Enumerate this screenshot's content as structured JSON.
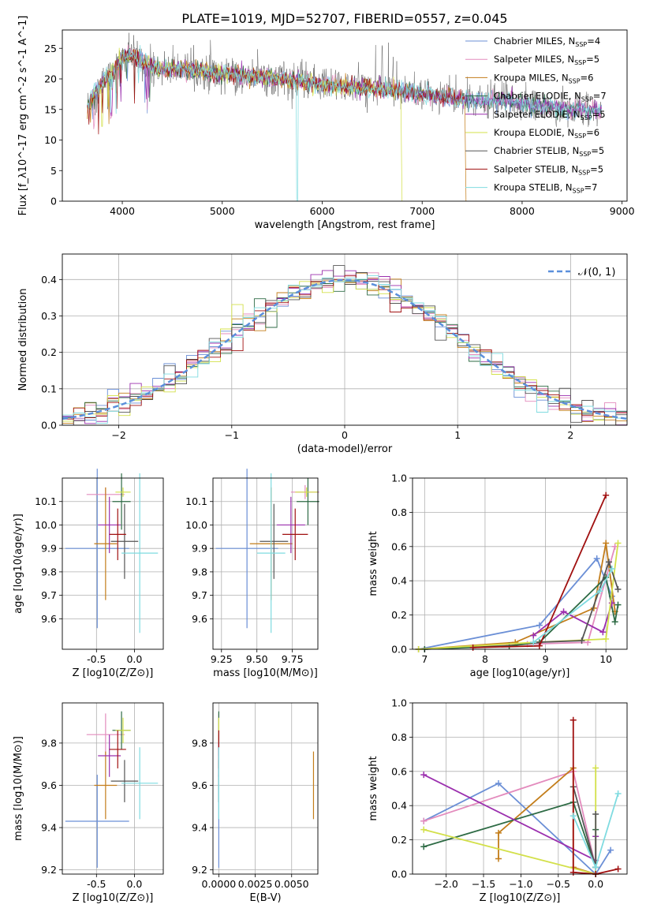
{
  "figure": {
    "title": "PLATE=1019, MJD=52707, FIBERID=0557, z=0.045",
    "colors": [
      "#6b8fd6",
      "#e38bbd",
      "#c37d1a",
      "#2e6b45",
      "#9b2fae",
      "#d3e04a",
      "#555555",
      "#a01010",
      "#7fdbe0"
    ]
  },
  "chart_data": [
    {
      "id": "spectrum",
      "type": "line",
      "xlabel": "wavelength [Angstrom, rest frame]",
      "ylabel": "Flux [f_λ10^-17 erg cm^-2 s^-1 A^-1]",
      "xlim": [
        3400,
        9050
      ],
      "ylim": [
        0,
        28
      ],
      "xticks": [
        4000,
        5000,
        6000,
        7000,
        8000,
        9000
      ],
      "yticks": [
        0,
        5,
        10,
        15,
        20,
        25
      ],
      "grid": false,
      "legend": "top-right",
      "data_x": [
        3650,
        3700,
        3800,
        3900,
        4000,
        4100,
        4200,
        4300,
        4400,
        4500,
        4600,
        4800,
        5000,
        5200,
        5400,
        5600,
        5800,
        6000,
        6200,
        6400,
        6600,
        6800,
        7000,
        7200,
        7400,
        7600,
        7800,
        8000,
        8200,
        8400,
        8600,
        8800
      ],
      "data_y": [
        15.5,
        17,
        19.5,
        21,
        23.5,
        24,
        23,
        22,
        21.5,
        21.5,
        21.5,
        21.2,
        20.8,
        20.5,
        20.3,
        20,
        19.5,
        19.2,
        18.8,
        18.5,
        18.3,
        18,
        17.5,
        17,
        16.7,
        16.2,
        16.5,
        16,
        15.5,
        15,
        15,
        14.8
      ],
      "series": [
        {
          "name": "Chabrier MILES",
          "nssp": "4"
        },
        {
          "name": "Salpeter MILES",
          "nssp": "5"
        },
        {
          "name": "Kroupa MILES",
          "nssp": "6"
        },
        {
          "name": "Chabrier ELODIE",
          "nssp": "7"
        },
        {
          "name": "Salpeter ELODIE",
          "nssp": "5"
        },
        {
          "name": "Kroupa ELODIE",
          "nssp": "6"
        },
        {
          "name": "Chabrier STELIB",
          "nssp": "5"
        },
        {
          "name": "Salpeter STELIB",
          "nssp": "5"
        },
        {
          "name": "Kroupa STELIB",
          "nssp": "7"
        }
      ],
      "legend_prefix": "N",
      "legend_sub": "SSP"
    },
    {
      "id": "residuals",
      "type": "histogram",
      "xlabel": "(data-model)/error",
      "ylabel": "Normed distribution",
      "xlim": [
        -2.5,
        2.5
      ],
      "ylim": [
        0,
        0.47
      ],
      "xticks": [
        -2,
        -1,
        0,
        1,
        2
      ],
      "yticks": [
        0.0,
        0.1,
        0.2,
        0.3,
        0.4
      ],
      "grid": true,
      "legend": "top-right",
      "legend_label": "𝒩(0, 1)",
      "bin_edges_start": -2.5,
      "bin_width": 0.1
    },
    {
      "id": "age-z",
      "type": "errorbar",
      "xlabel": "Z [log10(Z/Z⊙)]",
      "ylabel": "age [log10(age/yr)]",
      "xlim": [
        -0.95,
        0.38
      ],
      "ylim": [
        9.47,
        10.2
      ],
      "xticks": [
        -0.5,
        0.0
      ],
      "yticks": [
        9.6,
        9.7,
        9.8,
        9.9,
        10.0,
        10.1
      ],
      "points": [
        {
          "x": -0.49,
          "y": 9.9,
          "xerr": 0.42,
          "yerr": 0.34
        },
        {
          "x": -0.38,
          "y": 10.13,
          "xerr": 0.25,
          "yerr": 0.03
        },
        {
          "x": -0.38,
          "y": 9.92,
          "xerr": 0.15,
          "yerr": 0.24
        },
        {
          "x": -0.17,
          "y": 10.1,
          "xerr": 0.12,
          "yerr": 0.12
        },
        {
          "x": -0.33,
          "y": 10.0,
          "xerr": 0.15,
          "yerr": 0.12
        },
        {
          "x": -0.15,
          "y": 10.14,
          "xerr": 0.1,
          "yerr": 0.02
        },
        {
          "x": -0.13,
          "y": 9.93,
          "xerr": 0.18,
          "yerr": 0.16
        },
        {
          "x": -0.22,
          "y": 9.96,
          "xerr": 0.11,
          "yerr": 0.11
        },
        {
          "x": 0.07,
          "y": 9.88,
          "xerr": 0.24,
          "yerr": 0.34
        }
      ]
    },
    {
      "id": "age-mass",
      "type": "errorbar",
      "xlabel": "mass [log10(M/M⊙)]",
      "ylabel": "",
      "xlim": [
        9.19,
        9.93
      ],
      "ylim": [
        9.47,
        10.2
      ],
      "xticks": [
        9.25,
        9.5,
        9.75
      ],
      "yticks": [
        9.6,
        9.7,
        9.8,
        9.9,
        10.0,
        10.1
      ],
      "points": [
        {
          "x": 9.43,
          "y": 9.9,
          "xerr": 0.22,
          "yerr": 0.34
        },
        {
          "x": 9.84,
          "y": 10.14,
          "xerr": 0.1,
          "yerr": 0.03
        },
        {
          "x": 9.6,
          "y": 9.92,
          "xerr": 0.15,
          "yerr": 0.24
        },
        {
          "x": 9.86,
          "y": 10.1,
          "xerr": 0.08,
          "yerr": 0.1
        },
        {
          "x": 9.74,
          "y": 10.0,
          "xerr": 0.1,
          "yerr": 0.12
        },
        {
          "x": 9.85,
          "y": 10.14,
          "xerr": 0.08,
          "yerr": 0.02
        },
        {
          "x": 9.62,
          "y": 9.93,
          "xerr": 0.1,
          "yerr": 0.16
        },
        {
          "x": 9.77,
          "y": 9.96,
          "xerr": 0.09,
          "yerr": 0.11
        },
        {
          "x": 9.6,
          "y": 9.88,
          "xerr": 0.1,
          "yerr": 0.34
        }
      ]
    },
    {
      "id": "massweight-age",
      "type": "line",
      "xlabel": "age [log10(age/yr)]",
      "ylabel": "mass weight",
      "xlim": [
        6.8,
        10.35
      ],
      "ylim": [
        0,
        1.0
      ],
      "xticks": [
        7,
        8,
        9,
        10
      ],
      "yticks": [
        0.0,
        0.2,
        0.4,
        0.6,
        0.8,
        1.0
      ],
      "grid": true,
      "series": [
        {
          "x": [
            6.9,
            8.9,
            9.85,
            10.1
          ],
          "y": [
            0.0,
            0.14,
            0.53,
            0.31
          ]
        },
        {
          "x": [
            7.0,
            8.7,
            9.7,
            10.15
          ],
          "y": [
            0.0,
            0.03,
            0.04,
            0.6
          ]
        },
        {
          "x": [
            6.9,
            8.5,
            9.8,
            10.0,
            10.15
          ],
          "y": [
            0.0,
            0.04,
            0.24,
            0.62,
            0.22
          ]
        },
        {
          "x": [
            7.0,
            8.4,
            8.9,
            10.0,
            10.15,
            10.2
          ],
          "y": [
            0.0,
            0.02,
            0.04,
            0.42,
            0.16,
            0.26
          ]
        },
        {
          "x": [
            8.8,
            9.3,
            9.95,
            10.1
          ],
          "y": [
            0.08,
            0.22,
            0.1,
            0.27
          ]
        },
        {
          "x": [
            6.9,
            8.8,
            10.0,
            10.2
          ],
          "y": [
            0.0,
            0.04,
            0.06,
            0.62
          ]
        },
        {
          "x": [
            8.8,
            9.6,
            10.05,
            10.2
          ],
          "y": [
            0.04,
            0.05,
            0.51,
            0.35
          ]
        },
        {
          "x": [
            7.8,
            8.9,
            10.0
          ],
          "y": [
            0.01,
            0.02,
            0.9
          ]
        },
        {
          "x": [
            8.8,
            9.9,
            10.1
          ],
          "y": [
            0.04,
            0.34,
            0.47
          ]
        }
      ]
    },
    {
      "id": "mass-z",
      "type": "errorbar",
      "xlabel": "Z [log10(Z/Z⊙)]",
      "ylabel": "mass [log10(M/M⊙)]",
      "xlim": [
        -0.95,
        0.38
      ],
      "ylim": [
        9.18,
        9.99
      ],
      "xticks": [
        -0.5,
        0.0
      ],
      "yticks": [
        9.2,
        9.4,
        9.6,
        9.8
      ],
      "points": [
        {
          "x": -0.49,
          "y": 9.43,
          "xerr": 0.42,
          "yerr": 0.22
        },
        {
          "x": -0.38,
          "y": 9.84,
          "xerr": 0.25,
          "yerr": 0.1
        },
        {
          "x": -0.38,
          "y": 9.6,
          "xerr": 0.15,
          "yerr": 0.16
        },
        {
          "x": -0.17,
          "y": 9.86,
          "xerr": 0.12,
          "yerr": 0.09
        },
        {
          "x": -0.33,
          "y": 9.74,
          "xerr": 0.15,
          "yerr": 0.1
        },
        {
          "x": -0.15,
          "y": 9.86,
          "xerr": 0.1,
          "yerr": 0.06
        },
        {
          "x": -0.13,
          "y": 9.62,
          "xerr": 0.18,
          "yerr": 0.1
        },
        {
          "x": -0.22,
          "y": 9.77,
          "xerr": 0.11,
          "yerr": 0.09
        },
        {
          "x": 0.07,
          "y": 9.61,
          "xerr": 0.24,
          "yerr": 0.17
        }
      ]
    },
    {
      "id": "mass-ebv",
      "type": "errorbar",
      "xlabel": "E(B-V)",
      "ylabel": "",
      "xlim": [
        -0.0004,
        0.0068
      ],
      "ylim": [
        9.18,
        9.99
      ],
      "xticks": [
        0.0,
        0.0025,
        0.005
      ],
      "xticklabels": [
        "0.0000",
        "0.0025",
        "0.0050"
      ],
      "yticks": [
        9.2,
        9.4,
        9.6,
        9.8
      ],
      "points": [
        {
          "x": 0.0,
          "y": 9.43,
          "xerr": 0.0,
          "yerr": 0.22
        },
        {
          "x": 0.0,
          "y": 9.84,
          "xerr": 0.0,
          "yerr": 0.1
        },
        {
          "x": 0.0065,
          "y": 9.6,
          "xerr": 0.0,
          "yerr": 0.16
        },
        {
          "x": 0.0,
          "y": 9.86,
          "xerr": 0.0,
          "yerr": 0.09
        },
        {
          "x": 0.0,
          "y": 9.74,
          "xerr": 0.0,
          "yerr": 0.1
        },
        {
          "x": 0.0,
          "y": 9.86,
          "xerr": 0.0,
          "yerr": 0.06
        },
        {
          "x": 0.0,
          "y": 9.62,
          "xerr": 0.0,
          "yerr": 0.1
        },
        {
          "x": 0.0,
          "y": 9.77,
          "xerr": 0.0,
          "yerr": 0.09
        },
        {
          "x": 0.0,
          "y": 9.61,
          "xerr": 0.0,
          "yerr": 0.17
        }
      ]
    },
    {
      "id": "massweight-z",
      "type": "line",
      "xlabel": "Z [log10(Z/Z⊙)]",
      "ylabel": "mass weight",
      "xlim": [
        -2.45,
        0.42
      ],
      "ylim": [
        0,
        1.0
      ],
      "xticks": [
        -2.0,
        -1.5,
        -1.0,
        -0.5,
        0.0
      ],
      "yticks": [
        0.0,
        0.2,
        0.4,
        0.6,
        0.8,
        1.0
      ],
      "grid": true,
      "series": [
        {
          "x": [
            -2.3,
            -1.3,
            0.0,
            0.2
          ],
          "y": [
            0.31,
            0.53,
            0.0,
            0.14
          ]
        },
        {
          "x": [
            -2.3,
            -0.3,
            0.0
          ],
          "y": [
            0.31,
            0.6,
            0.04
          ]
        },
        {
          "x": [
            -1.3,
            -1.3,
            -0.3,
            -0.3,
            0.0
          ],
          "y": [
            0.09,
            0.24,
            0.62,
            0.04,
            0.0
          ]
        },
        {
          "x": [
            -2.3,
            -0.3,
            0.0,
            0.0
          ],
          "y": [
            0.16,
            0.42,
            0.04,
            0.26
          ]
        },
        {
          "x": [
            -2.3,
            0.0,
            0.0
          ],
          "y": [
            0.58,
            0.08,
            0.22
          ]
        },
        {
          "x": [
            -2.3,
            0.0,
            0.0
          ],
          "y": [
            0.26,
            0.0,
            0.62
          ]
        },
        {
          "x": [
            -0.3,
            0.0,
            0.0
          ],
          "y": [
            0.51,
            0.04,
            0.35
          ]
        },
        {
          "x": [
            -0.3,
            -0.3,
            0.0,
            0.3
          ],
          "y": [
            0.9,
            0.01,
            0.0,
            0.03
          ]
        },
        {
          "x": [
            -0.3,
            0.0,
            0.3
          ],
          "y": [
            0.34,
            0.04,
            0.47
          ]
        }
      ]
    }
  ]
}
